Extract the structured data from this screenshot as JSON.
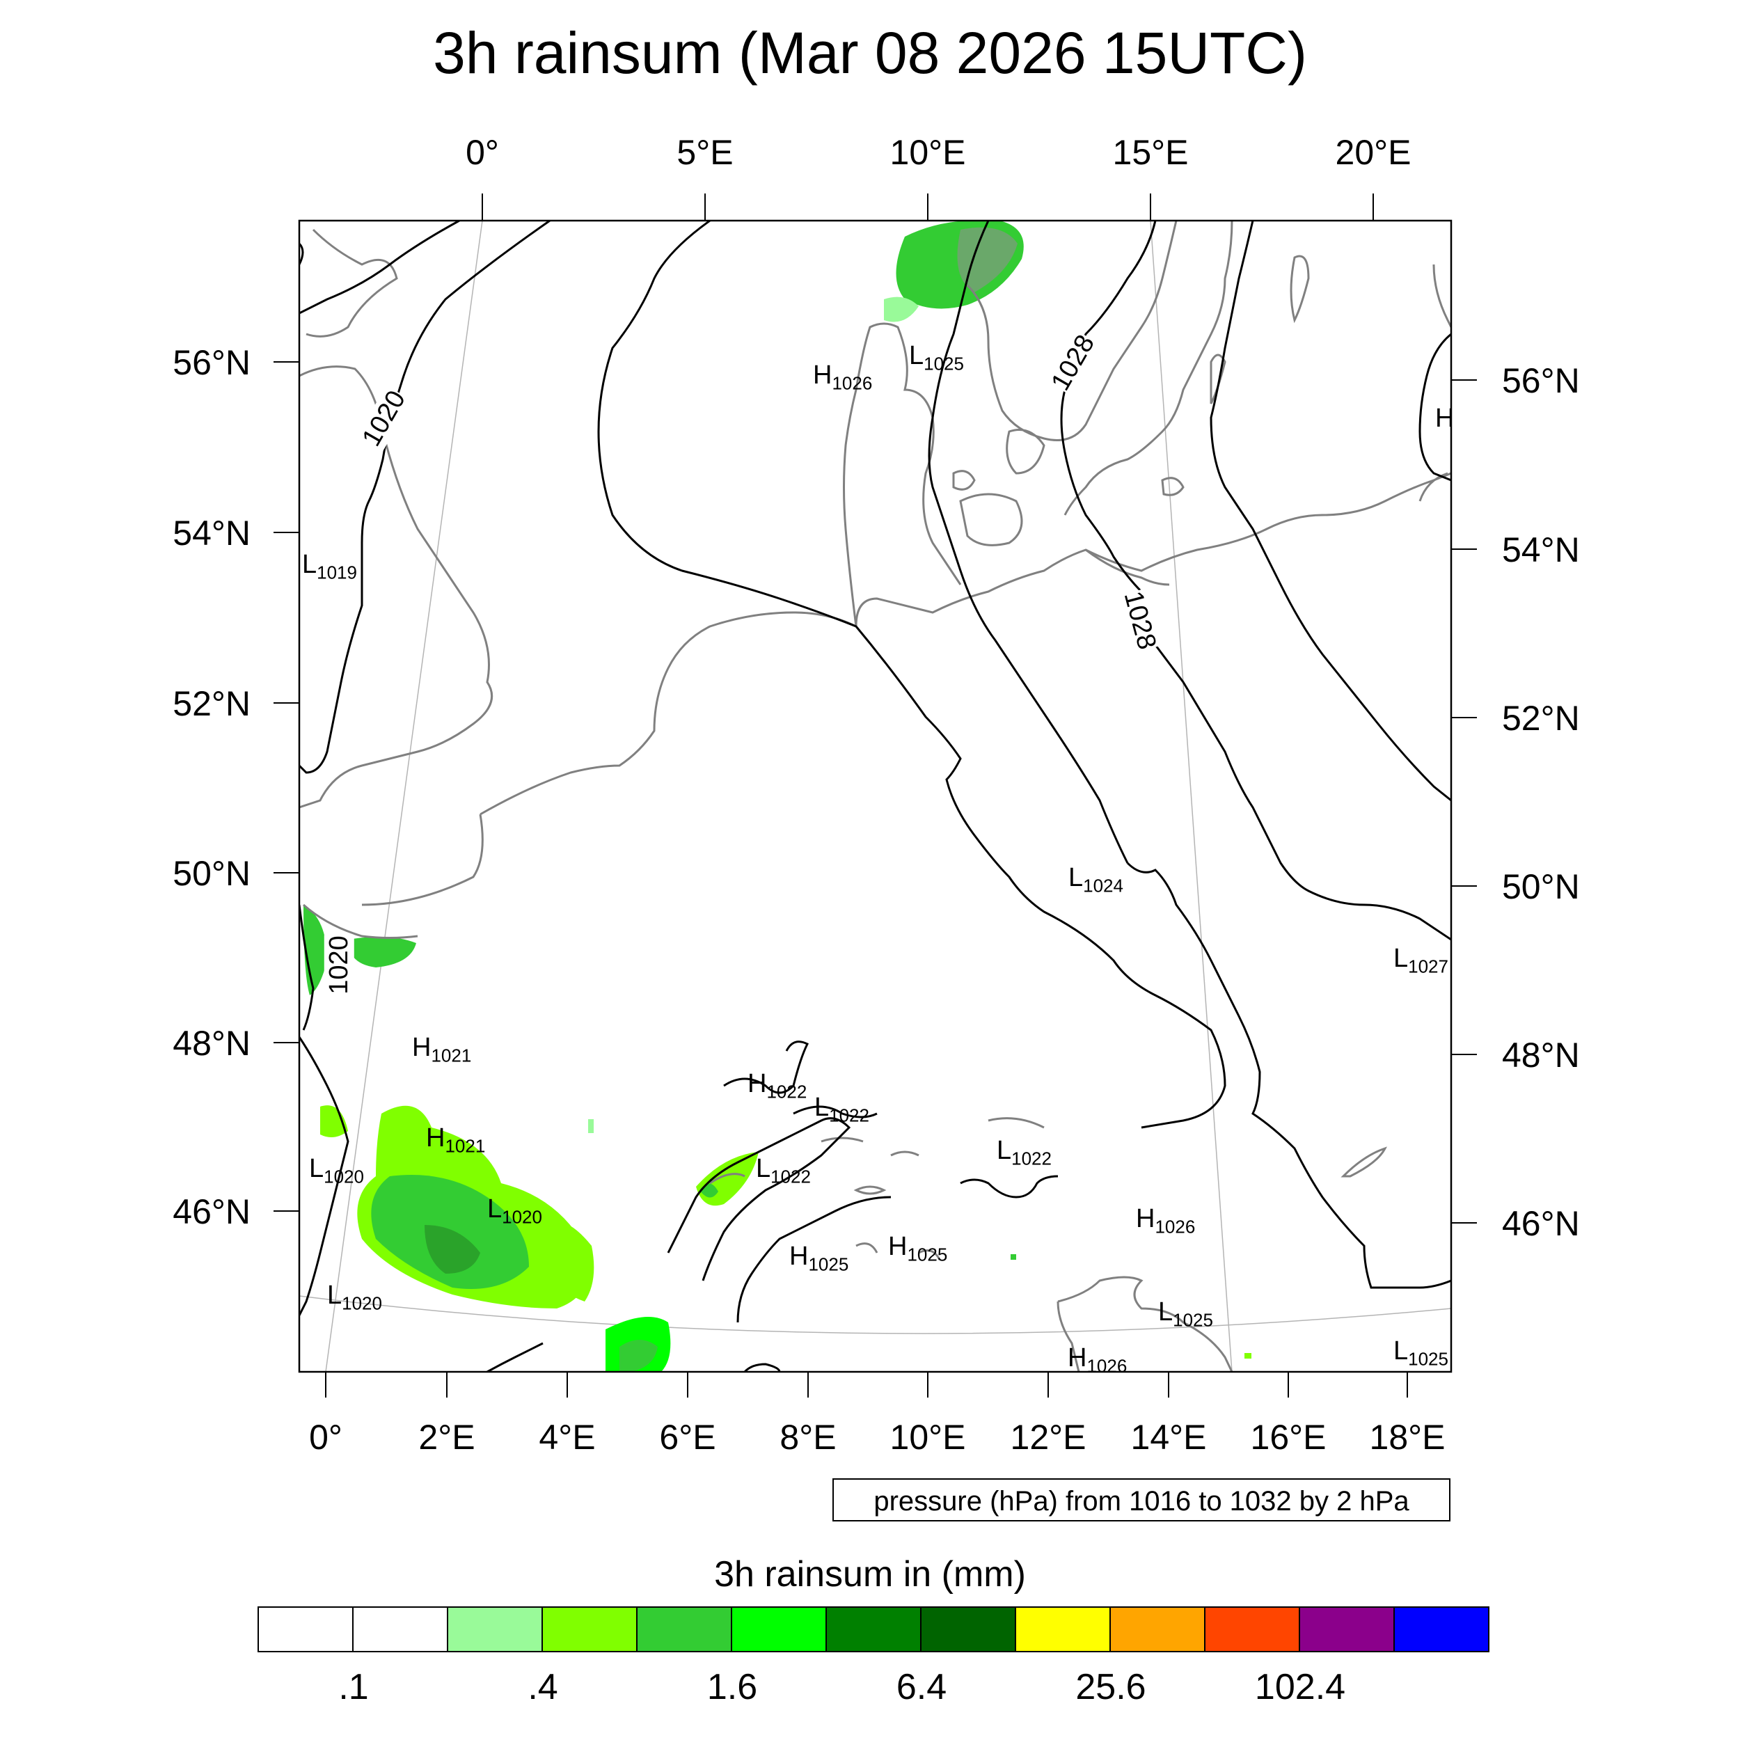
{
  "title": "3h rainsum (Mar 08 2026 15UTC)",
  "top_lon_ticks": [
    "0°",
    "5°E",
    "10°E",
    "15°E",
    "20°E"
  ],
  "bottom_lon_ticks": [
    "0°",
    "2°E",
    "4°E",
    "6°E",
    "8°E",
    "10°E",
    "12°E",
    "14°E",
    "16°E",
    "18°E"
  ],
  "left_lat_ticks": [
    "56°N",
    "54°N",
    "52°N",
    "50°N",
    "48°N",
    "46°N"
  ],
  "right_lat_ticks": [
    "56°N",
    "54°N",
    "52°N",
    "50°N",
    "48°N",
    "46°N"
  ],
  "contour_info": "pressure (hPa) from 1016 to 1032 by 2 hPa",
  "colorbar": {
    "title": "3h rainsum in (mm)",
    "colors": [
      "#ffffff",
      "#ffffff",
      "#99fa99",
      "#80ff00",
      "#33cc33",
      "#00ff00",
      "#008000",
      "#006400",
      "#ffff00",
      "#ffa500",
      "#ff4500",
      "#8b008b",
      "#0000ff"
    ],
    "tick_labels": [
      ".1",
      ".4",
      "1.6",
      "6.4",
      "25.6",
      "102.4"
    ]
  },
  "contour_labels": [
    "1020",
    "1028",
    "1028",
    "1020"
  ],
  "pressure_centers": [
    {
      "type": "H",
      "value": "1026"
    },
    {
      "type": "L",
      "value": "1025"
    },
    {
      "type": "L",
      "value": "1019"
    },
    {
      "type": "H",
      "value": "1021"
    },
    {
      "type": "H",
      "value": "1021"
    },
    {
      "type": "L",
      "value": "1020"
    },
    {
      "type": "L",
      "value": "1020"
    },
    {
      "type": "L",
      "value": "1020"
    },
    {
      "type": "H",
      "value": "1022"
    },
    {
      "type": "L",
      "value": "1022"
    },
    {
      "type": "L",
      "value": "1022"
    },
    {
      "type": "L",
      "value": "1022"
    },
    {
      "type": "L",
      "value": "1024"
    },
    {
      "type": "H",
      "value": "1025"
    },
    {
      "type": "H",
      "value": "1025"
    },
    {
      "type": "H",
      "value": "1026"
    },
    {
      "type": "L",
      "value": "1025"
    },
    {
      "type": "H",
      "value": "1026"
    },
    {
      "type": "L",
      "value": "1027"
    },
    {
      "type": "L",
      "value": "1025"
    },
    {
      "type": "H",
      "value": ""
    }
  ],
  "colors": {
    "isobar": "#000000",
    "coastline": "#808080",
    "frame": "#000000"
  }
}
